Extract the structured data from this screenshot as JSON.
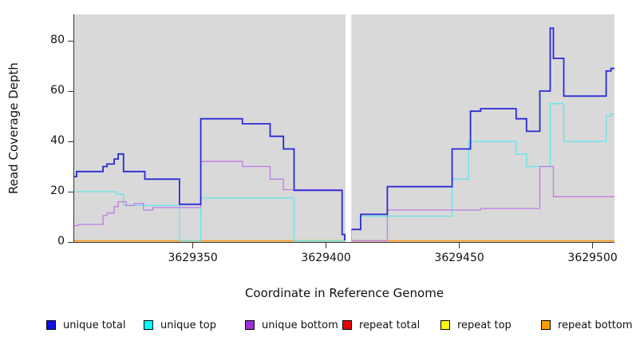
{
  "figure": {
    "xlabel": "Coordinate in Reference Genome",
    "ylabel": "Read Coverage Depth"
  },
  "legend": {
    "items": [
      {
        "label": "unique total",
        "color": "#1010e6"
      },
      {
        "label": "unique top",
        "color": "#00ffff"
      },
      {
        "label": "unique bottom",
        "color": "#9b30d6"
      },
      {
        "label": "repeat total",
        "color": "#e60000"
      },
      {
        "label": "repeat top",
        "color": "#ffff00"
      },
      {
        "label": "repeat bottom",
        "color": "#ff9d00"
      }
    ]
  },
  "chart_data": {
    "type": "line",
    "subtype": "step-coverage",
    "title": "",
    "xlabel": "Coordinate in Reference Genome",
    "ylabel": "Read Coverage Depth",
    "xlim": [
      3629305.5,
      3629508.2
    ],
    "ylim": [
      0,
      90.5
    ],
    "xticks": [
      3629350,
      3629400,
      3629450,
      3629500
    ],
    "yticks": [
      0,
      20,
      40,
      60,
      80
    ],
    "grid": false,
    "legend_position": "bottom",
    "plot_background": "#d9d9d9",
    "gap_region": [
      3629407.3,
      3629409.5
    ],
    "series": [
      {
        "name": "repeat total",
        "color": "#e03030",
        "line_width": 1.3,
        "steps": [
          [
            3629305.5,
            0
          ]
        ]
      },
      {
        "name": "repeat top",
        "color": "#f2f200",
        "line_width": 1.3,
        "steps": [
          [
            3629305.5,
            0
          ]
        ]
      },
      {
        "name": "repeat bottom",
        "color": "#ff9d1c",
        "line_width": 1.4,
        "steps": [
          [
            3629305.5,
            0
          ]
        ]
      },
      {
        "name": "unique top",
        "color": "#5ee7ee",
        "line_width": 1.3,
        "steps": [
          [
            3629305.5,
            20
          ],
          [
            3629321.5,
            19
          ],
          [
            3629324,
            14.5
          ],
          [
            3629345,
            0.6
          ],
          [
            3629353,
            17.5
          ],
          [
            3629388,
            0.4
          ],
          [
            3629409.3,
            5
          ],
          [
            3629413,
            10.3
          ],
          [
            3629447.3,
            25
          ],
          [
            3629453.5,
            40
          ],
          [
            3629471.3,
            35
          ],
          [
            3629475.2,
            30
          ],
          [
            3629484.1,
            55
          ],
          [
            3629489.2,
            40
          ],
          [
            3629505.1,
            50
          ],
          [
            3629506.9,
            51
          ]
        ]
      },
      {
        "name": "unique bottom",
        "color": "#bf7ce8",
        "line_width": 1.3,
        "steps": [
          [
            3629305.5,
            6.5
          ],
          [
            3629307,
            7
          ],
          [
            3629316.3,
            10.5
          ],
          [
            3629317.8,
            11.5
          ],
          [
            3629320.5,
            14
          ],
          [
            3629322,
            16
          ],
          [
            3629325,
            14.5
          ],
          [
            3629328,
            15.3
          ],
          [
            3629331.5,
            12.7
          ],
          [
            3629335,
            13.7
          ],
          [
            3629353,
            32
          ],
          [
            3629368.6,
            30
          ],
          [
            3629379,
            25
          ],
          [
            3629384,
            20.8
          ],
          [
            3629406,
            3
          ],
          [
            3629407,
            1
          ],
          [
            3629409.3,
            0.5
          ],
          [
            3629423,
            12.7
          ],
          [
            3629458,
            13.3
          ],
          [
            3629480.2,
            30
          ],
          [
            3629485.3,
            18
          ]
        ]
      },
      {
        "name": "unique total",
        "color": "#2a2ad8",
        "line_width": 1.8,
        "steps": [
          [
            3629305.5,
            26
          ],
          [
            3629306.4,
            28
          ],
          [
            3629316.3,
            30
          ],
          [
            3629317.8,
            31
          ],
          [
            3629320.5,
            33
          ],
          [
            3629322,
            35
          ],
          [
            3629324,
            28
          ],
          [
            3629332,
            25
          ],
          [
            3629345,
            15
          ],
          [
            3629353,
            49
          ],
          [
            3629368.6,
            47
          ],
          [
            3629379,
            42
          ],
          [
            3629384,
            37
          ],
          [
            3629388,
            20.5
          ],
          [
            3629406,
            3
          ],
          [
            3629407,
            1
          ],
          [
            3629409.3,
            5
          ],
          [
            3629413,
            11
          ],
          [
            3629423,
            22
          ],
          [
            3629447.3,
            37
          ],
          [
            3629454.2,
            52
          ],
          [
            3629458,
            53
          ],
          [
            3629471.3,
            49
          ],
          [
            3629475.2,
            44
          ],
          [
            3629480.2,
            60
          ],
          [
            3629484.1,
            85
          ],
          [
            3629485.3,
            73
          ],
          [
            3629489.2,
            58
          ],
          [
            3629505.1,
            68
          ],
          [
            3629506.9,
            69
          ]
        ]
      }
    ]
  }
}
